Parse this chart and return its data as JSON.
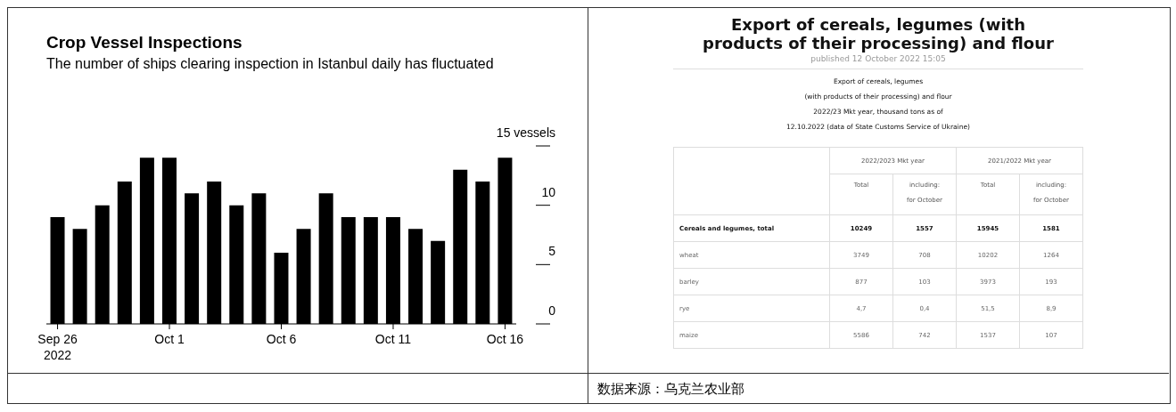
{
  "chart_data": [
    {
      "type": "bar",
      "title": "Crop Vessel Inspections",
      "subtitle": "The number of ships clearing inspection in Istanbul daily has fluctuated",
      "categories": [
        "Sep 26\n2022",
        null,
        null,
        null,
        null,
        "Oct 1",
        null,
        null,
        null,
        null,
        "Oct 6",
        null,
        null,
        null,
        null,
        "Oct 11",
        null,
        null,
        null,
        null,
        "Oct 16"
      ],
      "values": [
        9,
        8,
        10,
        12,
        14,
        14,
        11,
        12,
        10,
        11,
        6,
        8,
        11,
        9,
        9,
        9,
        8,
        7,
        13,
        12,
        14
      ],
      "color": "#000000",
      "ylim": [
        0,
        15
      ],
      "yticks": [
        0,
        5,
        10,
        {
          "value": 15,
          "label": "15 vessels"
        }
      ],
      "grid": false,
      "legend": false
    },
    {
      "type": "other",
      "title": "Export of cereals, legumes (with products of their processing) and flour",
      "subtitle": "published 12 October 2022 15:05",
      "annotations": [
        "Export of cereals, legumes",
        "(with products of their processing) and flour",
        "2022/23 Mkt year, thousand tons as of",
        "12.10.2022 (data of State Customs Service of Ukraine)",
        "2022/2023 Mkt year",
        "2021/2022 Mkt year",
        "数据来源：乌克兰农业部"
      ],
      "categories": [
        "Cereals and legumes, total",
        "wheat",
        "barley",
        "rye",
        "maize"
      ],
      "series": [
        {
          "name": "Total",
          "values": [
            10249,
            3749,
            877,
            4.7,
            5586
          ],
          "value_labels": [
            "10249",
            "3749",
            "877",
            "4,7",
            "5586"
          ]
        },
        {
          "name": "including:\nfor October",
          "values": [
            1557,
            708,
            103,
            0.4,
            742
          ],
          "value_labels": [
            "1557",
            "708",
            "103",
            "0,4",
            "742"
          ]
        },
        {
          "name": "Total",
          "values": [
            15945,
            10202,
            3973,
            51.5,
            1537
          ],
          "value_labels": [
            "15945",
            "10202",
            "3973",
            "51,5",
            "1537"
          ]
        },
        {
          "name": "including:\nfor October",
          "values": [
            1581,
            1264,
            193,
            8.9,
            107
          ],
          "value_labels": [
            "1581",
            "1264",
            "193",
            "8,9",
            "107"
          ]
        }
      ]
    }
  ]
}
